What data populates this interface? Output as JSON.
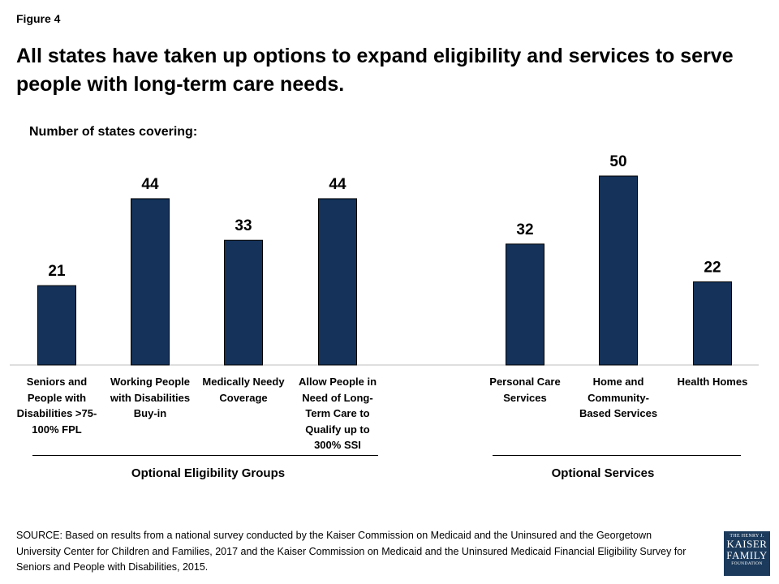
{
  "figure_label": "Figure 4",
  "chart_data": {
    "type": "bar",
    "title": "All states have taken up options to expand eligibility and services to serve people with long-term care needs.",
    "subtitle": "Number of states covering:",
    "ylim": [
      0,
      50
    ],
    "bar_color": "#14325a",
    "categories": [
      "Seniors and People with Disabilities >75-100% FPL",
      "Working People with Disabilities Buy-in",
      "Medically Needy Coverage",
      "Allow People in Need of Long-Term Care to Qualify up to 300% SSI",
      "Personal Care Services",
      "Home and Community-Based Services",
      "Health Homes"
    ],
    "values": [
      21,
      44,
      33,
      44,
      32,
      50,
      22
    ],
    "value_labels": [
      "21",
      "44",
      "33",
      "44",
      "32",
      "50",
      "22"
    ],
    "groups": [
      {
        "name": "Optional Eligibility Groups"
      },
      {
        "name": "Optional Services"
      }
    ]
  },
  "source_text": "SOURCE: Based on results from a national survey conducted by the Kaiser Commission on Medicaid and the Uninsured and the Georgetown University Center for Children and Families, 2017 and the Kaiser Commission on Medicaid and the Uninsured Medicaid Financial Eligibility Survey for Seniors and People with Disabilities, 2015.",
  "logo": {
    "line1": "THE HENRY J.",
    "line2": "KAISER",
    "line3": "FAMILY",
    "line4": "FOUNDATION"
  }
}
